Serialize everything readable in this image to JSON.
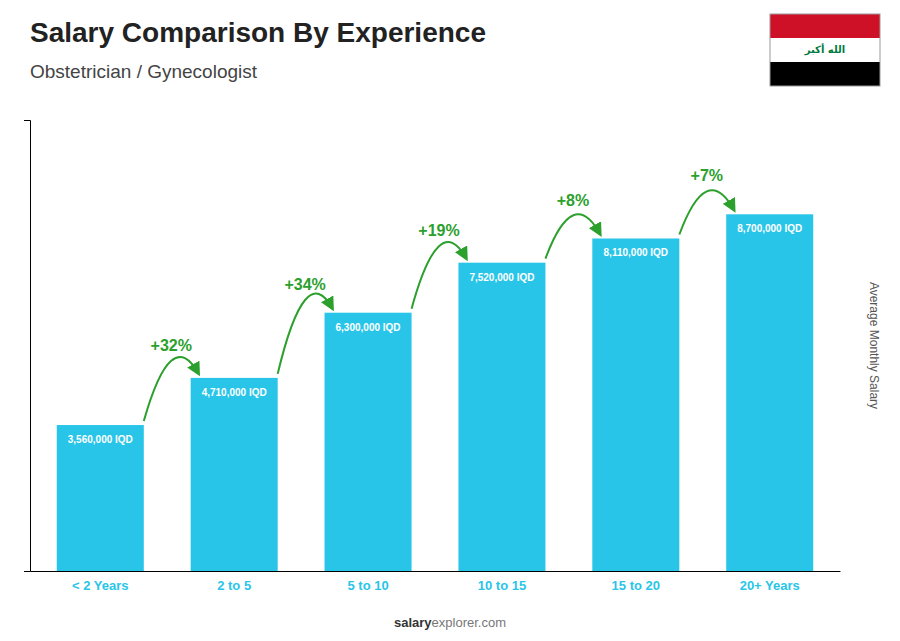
{
  "chart_data": {
    "type": "bar",
    "title": "Salary Comparison By Experience",
    "subtitle": "Obstetrician / Gynecologist",
    "ylabel": "Average Monthly Salary",
    "categories": [
      "< 2 Years",
      "2 to 5",
      "5 to 10",
      "10 to 15",
      "15 to 20",
      "20+ Years"
    ],
    "values": [
      3560000,
      4710000,
      6300000,
      7520000,
      8110000,
      8700000
    ],
    "value_labels": [
      "3,560,000 IQD",
      "4,710,000 IQD",
      "6,300,000 IQD",
      "7,520,000 IQD",
      "8,110,000 IQD",
      "8,700,000 IQD"
    ],
    "data_labels": true,
    "pct_labels": [
      "+32%",
      "+34%",
      "+19%",
      "+8%",
      "+7%"
    ],
    "annotations": [
      "salary",
      "explorer.com",
      "الله أكبر"
    ],
    "color": "#29C5E8",
    "ylim": [
      0,
      11000000
    ],
    "tick_labels": "x",
    "grid": false
  }
}
